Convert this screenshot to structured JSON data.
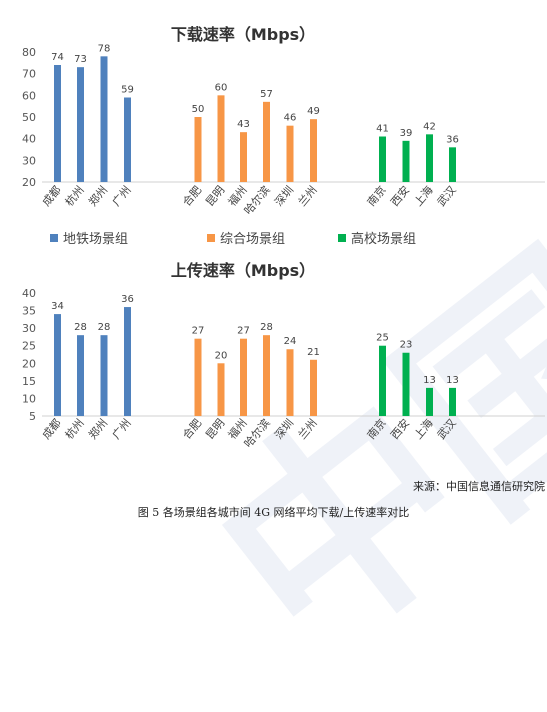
{
  "chart_data": [
    {
      "type": "bar",
      "title": "下载速率（Mbps）",
      "ylim": [
        20,
        80
      ],
      "yticks": [
        20,
        30,
        40,
        50,
        60,
        70,
        80
      ],
      "grid": false,
      "legend_position": "bottom",
      "groups": [
        {
          "name": "地铁场景组",
          "color": "#4f81bd",
          "categories": [
            "成都",
            "杭州",
            "郑州",
            "广州"
          ],
          "values": [
            74,
            73,
            78,
            59
          ]
        },
        {
          "name": "综合场景组",
          "color": "#f79646",
          "categories": [
            "合肥",
            "昆明",
            "福州",
            "哈尔滨",
            "深圳",
            "兰州"
          ],
          "values": [
            50,
            60,
            43,
            57,
            46,
            49
          ]
        },
        {
          "name": "高校场景组",
          "color": "#00b050",
          "categories": [
            "南京",
            "西安",
            "上海",
            "武汉"
          ],
          "values": [
            41,
            39,
            42,
            36
          ]
        }
      ]
    },
    {
      "type": "bar",
      "title": "上传速率（Mbps）",
      "ylim": [
        5,
        40
      ],
      "yticks": [
        5,
        10,
        15,
        20,
        25,
        30,
        35,
        40
      ],
      "grid": false,
      "groups": [
        {
          "name": "地铁场景组",
          "color": "#4f81bd",
          "categories": [
            "成都",
            "杭州",
            "郑州",
            "广州"
          ],
          "values": [
            34,
            28,
            28,
            36
          ]
        },
        {
          "name": "综合场景组",
          "color": "#f79646",
          "categories": [
            "合肥",
            "昆明",
            "福州",
            "哈尔滨",
            "深圳",
            "兰州"
          ],
          "values": [
            27,
            20,
            27,
            28,
            24,
            21
          ]
        },
        {
          "name": "高校场景组",
          "color": "#00b050",
          "categories": [
            "南京",
            "西安",
            "上海",
            "武汉"
          ],
          "values": [
            25,
            23,
            13,
            13
          ]
        }
      ]
    }
  ],
  "source": "来源：中国信息通信研究院",
  "caption": "图 5   各场景组各城市间 4G 网络平均下载/上传速率对比",
  "watermark": "中国信通院"
}
